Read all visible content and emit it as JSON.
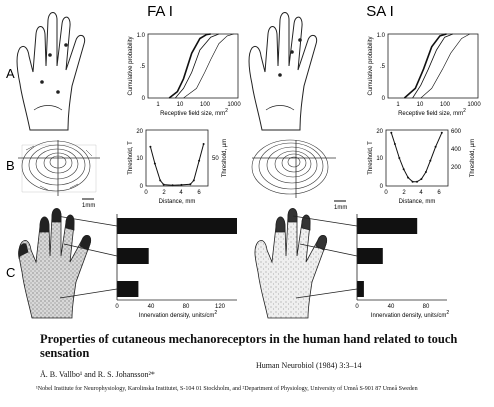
{
  "panels": {
    "row_labels": [
      "A",
      "B",
      "C"
    ],
    "columns": [
      "FA I",
      "SA I"
    ]
  },
  "row_a": {
    "ylabel": "Cumulative probability",
    "xlabel": "Receptive field size, mm",
    "xlabel_sup": "2",
    "yticks": [
      "0",
      ".5",
      "1.0"
    ],
    "xticks": [
      "1",
      "10",
      "100",
      "1000"
    ]
  },
  "row_b": {
    "ylabel_left": "Threshold, T",
    "ylabel_right": "Threshold, µm",
    "xlabel": "Distance, mm",
    "scale_bar": "1mm",
    "fa_yticks_left": [
      "0",
      "10",
      "20"
    ],
    "fa_yticks_right": [
      "50"
    ],
    "sa_yticks_left": [
      "0",
      "10",
      "20"
    ],
    "sa_yticks_right": [
      "200",
      "400",
      "600"
    ],
    "xticks": [
      "0",
      "2",
      "4",
      "6"
    ]
  },
  "row_c": {
    "xlabel": "Innervation density, units/cm",
    "xlabel_sup": "2",
    "fa_xticks": [
      "0",
      "40",
      "80",
      "120"
    ],
    "sa_xticks": [
      "0",
      "40",
      "80"
    ]
  },
  "chart_data": [
    {
      "type": "line",
      "title": "FA I",
      "xlabel": "Receptive field size, mm²",
      "ylabel": "Cumulative probability",
      "xscale": "log",
      "xlim": [
        0.5,
        1000
      ],
      "ylim": [
        0,
        1
      ],
      "series": [
        {
          "x": [
            3,
            6,
            10,
            20,
            40,
            70,
            100
          ],
          "y": [
            0,
            0.1,
            0.3,
            0.7,
            0.93,
            0.99,
            1
          ]
        },
        {
          "x": [
            5,
            10,
            20,
            40,
            100,
            200
          ],
          "y": [
            0,
            0.15,
            0.4,
            0.75,
            0.95,
            1
          ]
        },
        {
          "x": [
            10,
            30,
            60,
            100,
            200,
            400,
            700
          ],
          "y": [
            0,
            0.15,
            0.4,
            0.6,
            0.85,
            0.97,
            1
          ]
        }
      ]
    },
    {
      "type": "line",
      "title": "SA I",
      "xlabel": "Receptive field size, mm²",
      "ylabel": "Cumulative probability",
      "xscale": "log",
      "xlim": [
        0.5,
        1000
      ],
      "ylim": [
        0,
        1
      ],
      "series": [
        {
          "x": [
            2,
            5,
            10,
            20,
            40,
            70
          ],
          "y": [
            0,
            0.15,
            0.45,
            0.8,
            0.97,
            1
          ]
        },
        {
          "x": [
            4,
            8,
            15,
            30,
            60,
            120
          ],
          "y": [
            0,
            0.2,
            0.45,
            0.75,
            0.95,
            1
          ]
        },
        {
          "x": [
            8,
            20,
            50,
            100,
            250,
            500
          ],
          "y": [
            0,
            0.15,
            0.45,
            0.7,
            0.93,
            1
          ]
        }
      ]
    },
    {
      "type": "line",
      "title": "FA I",
      "xlabel": "Distance, mm",
      "ylabel": "Threshold, T",
      "xlim": [
        0,
        7
      ],
      "ylim": [
        0,
        20
      ],
      "series": [
        {
          "x": [
            0.5,
            1,
            1.6,
            2,
            3,
            4,
            5,
            5.4,
            6,
            6.5
          ],
          "y": [
            14,
            8,
            2,
            0.5,
            0.3,
            0.4,
            0.6,
            2,
            9,
            15
          ]
        }
      ]
    },
    {
      "type": "line",
      "title": "SA I",
      "xlabel": "Distance, mm",
      "ylabel": "Threshold, T",
      "xlim": [
        0,
        7
      ],
      "ylim": [
        0,
        20
      ],
      "series": [
        {
          "x": [
            0.6,
            1,
            1.5,
            2,
            2.5,
            3,
            3.5,
            4,
            4.5,
            5,
            5.6,
            6.3
          ],
          "y": [
            19,
            15,
            10,
            6,
            3,
            1.5,
            1.5,
            2.5,
            5,
            9,
            14,
            19
          ]
        }
      ]
    },
    {
      "type": "bar",
      "title": "FA I",
      "orientation": "horizontal",
      "xlabel": "Innervation density, units/cm²",
      "categories": [
        "fingertip",
        "finger",
        "palm"
      ],
      "values": [
        140,
        37,
        25
      ],
      "xlim": [
        0,
        140
      ]
    },
    {
      "type": "bar",
      "title": "SA I",
      "orientation": "horizontal",
      "xlabel": "Innervation density, units/cm²",
      "categories": [
        "fingertip",
        "finger",
        "palm"
      ],
      "values": [
        70,
        30,
        8
      ],
      "xlim": [
        0,
        100
      ]
    }
  ],
  "caption": {
    "title": "Properties of cutaneous mechanoreceptors in the human hand related to touch sensation",
    "authors": "Å. B. Vallbo¹ and R. S. Johansson²*",
    "citation": "Human Neurobiol (1984) 3:3–14",
    "affiliations": "¹Nobel Institute for Neurophysiology, Karolinska Institutet, S-104 01 Stockholm, and ²Department of Physiology, University of Umeå S-901 87 Umeå Sweden"
  }
}
